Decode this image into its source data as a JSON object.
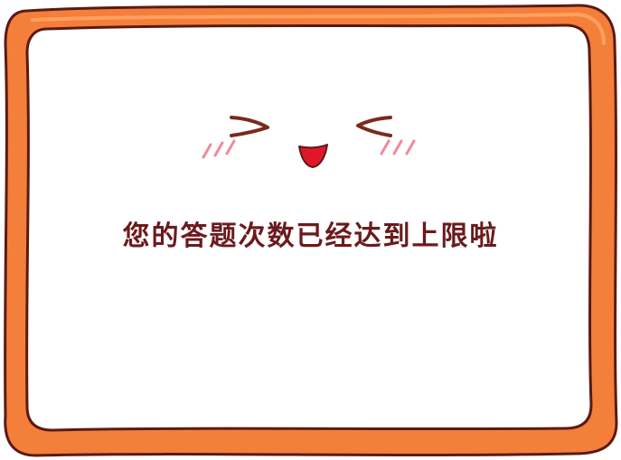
{
  "dialog": {
    "message": "您的答题次数已经达到上限啦",
    "mascot": "happy-face-icon"
  },
  "colors": {
    "frame_outer": "#5a1a14",
    "frame_orange": "#f47f3a",
    "frame_orange_light": "#ffa060",
    "panel_bg": "#ffffff",
    "message_text": "#6b1a1c",
    "eye_stroke": "#7a2a1c",
    "mouth_fill": "#e0172a",
    "blush": "#f08a9a"
  }
}
